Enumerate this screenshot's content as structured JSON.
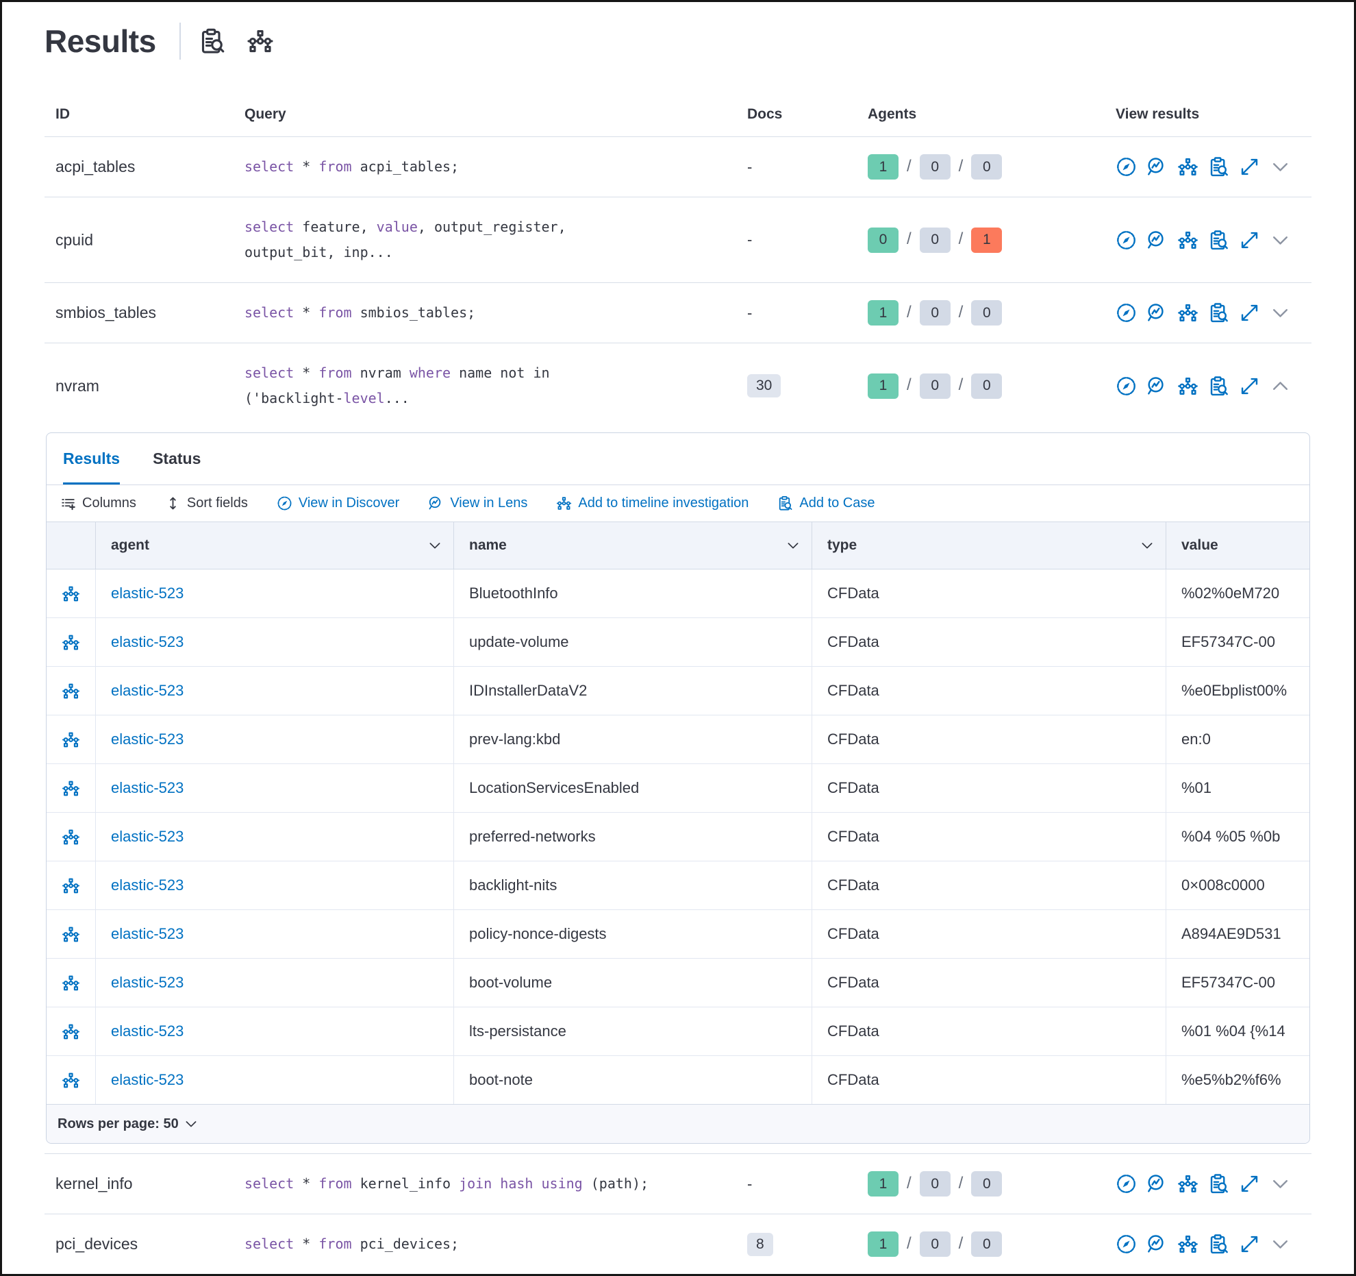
{
  "colors": {
    "primary": "#0071C2",
    "keyword": "#7A54A5",
    "success": "#6DCCB1",
    "danger": "#FC7A5C",
    "badge": "#D3DAE6",
    "docsBadge": "#E0E5EE",
    "text": "#343741",
    "border": "#D3DAE6",
    "rowBorder": "#D8DEE8",
    "gridHeaderBg": "#F1F4FA",
    "footerBg": "#F7F8FC",
    "slash": "#69707D",
    "chevron": "#8E95A3"
  },
  "header": {
    "title": "Results",
    "icons": [
      "inspect",
      "timeline"
    ]
  },
  "table": {
    "columns": [
      "ID",
      "Query",
      "Docs",
      "Agents",
      "View results"
    ],
    "view_icons": [
      "discover",
      "lens",
      "timeline",
      "inspect",
      "expand"
    ],
    "rows": [
      {
        "id": "acpi_tables",
        "query": [
          [
            "select",
            true
          ],
          [
            " * ",
            false
          ],
          [
            "from",
            true
          ],
          [
            " acpi_tables;",
            false
          ]
        ],
        "docs": {
          "text": "-",
          "badge": false
        },
        "agents": [
          {
            "n": "1",
            "c": "success"
          },
          {
            "n": "0",
            "c": "default"
          },
          {
            "n": "0",
            "c": "default"
          }
        ],
        "expanded": false
      },
      {
        "id": "cpuid",
        "query": [
          [
            "select",
            true
          ],
          [
            " feature, ",
            false
          ],
          [
            "value",
            true
          ],
          [
            ", output_register,\noutput_bit, inp...",
            false
          ]
        ],
        "docs": {
          "text": "-",
          "badge": false
        },
        "agents": [
          {
            "n": "0",
            "c": "success"
          },
          {
            "n": "0",
            "c": "default"
          },
          {
            "n": "1",
            "c": "danger"
          }
        ],
        "expanded": false
      },
      {
        "id": "smbios_tables",
        "query": [
          [
            "select",
            true
          ],
          [
            " * ",
            false
          ],
          [
            "from",
            true
          ],
          [
            " smbios_tables;",
            false
          ]
        ],
        "docs": {
          "text": "-",
          "badge": false
        },
        "agents": [
          {
            "n": "1",
            "c": "success"
          },
          {
            "n": "0",
            "c": "default"
          },
          {
            "n": "0",
            "c": "default"
          }
        ],
        "expanded": false
      },
      {
        "id": "nvram",
        "query": [
          [
            "select",
            true
          ],
          [
            " * ",
            false
          ],
          [
            "from",
            true
          ],
          [
            " nvram ",
            false
          ],
          [
            "where",
            true
          ],
          [
            " name not in\n('backlight-",
            false
          ],
          [
            "level",
            true
          ],
          [
            "...",
            false
          ]
        ],
        "docs": {
          "text": "30",
          "badge": true
        },
        "agents": [
          {
            "n": "1",
            "c": "success"
          },
          {
            "n": "0",
            "c": "default"
          },
          {
            "n": "0",
            "c": "default"
          }
        ],
        "expanded": true
      },
      {
        "id": "kernel_info",
        "query": [
          [
            "select",
            true
          ],
          [
            " * ",
            false
          ],
          [
            "from",
            true
          ],
          [
            " kernel_info ",
            false
          ],
          [
            "join hash using",
            true
          ],
          [
            " (path);",
            false
          ]
        ],
        "docs": {
          "text": "-",
          "badge": false
        },
        "agents": [
          {
            "n": "1",
            "c": "success"
          },
          {
            "n": "0",
            "c": "default"
          },
          {
            "n": "0",
            "c": "default"
          }
        ],
        "expanded": false
      },
      {
        "id": "pci_devices",
        "query": [
          [
            "select",
            true
          ],
          [
            " * ",
            false
          ],
          [
            "from",
            true
          ],
          [
            " pci_devices;",
            false
          ]
        ],
        "docs": {
          "text": "8",
          "badge": true
        },
        "agents": [
          {
            "n": "1",
            "c": "success"
          },
          {
            "n": "0",
            "c": "default"
          },
          {
            "n": "0",
            "c": "default"
          }
        ],
        "expanded": false
      }
    ]
  },
  "panel": {
    "tabs": [
      {
        "label": "Results",
        "active": true
      },
      {
        "label": "Status",
        "active": false
      }
    ],
    "toolbar": [
      {
        "label": "Columns",
        "icon": "columns",
        "primary": false
      },
      {
        "label": "Sort fields",
        "icon": "sort",
        "primary": false
      },
      {
        "label": "View in Discover",
        "icon": "discover",
        "primary": true
      },
      {
        "label": "View in Lens",
        "icon": "lens",
        "primary": true
      },
      {
        "label": "Add to timeline investigation",
        "icon": "timeline",
        "primary": true
      },
      {
        "label": "Add to Case",
        "icon": "inspect",
        "primary": true
      }
    ],
    "grid": {
      "row_icon": "timeline",
      "columns": [
        {
          "label": "agent",
          "sortable": true
        },
        {
          "label": "name",
          "sortable": true
        },
        {
          "label": "type",
          "sortable": true
        },
        {
          "label": "value",
          "sortable": false
        }
      ],
      "rows": [
        {
          "agent": "elastic-523",
          "name": "BluetoothInfo",
          "type": "CFData",
          "value": "%02%0eM720"
        },
        {
          "agent": "elastic-523",
          "name": "update-volume",
          "type": "CFData",
          "value": "EF57347C-00"
        },
        {
          "agent": "elastic-523",
          "name": "IDInstallerDataV2",
          "type": "CFData",
          "value": "%e0Ebplist00%"
        },
        {
          "agent": "elastic-523",
          "name": "prev-lang:kbd",
          "type": "CFData",
          "value": "en:0"
        },
        {
          "agent": "elastic-523",
          "name": "LocationServicesEnabled",
          "type": "CFData",
          "value": "%01"
        },
        {
          "agent": "elastic-523",
          "name": "preferred-networks",
          "type": "CFData",
          "value": "%04 %05 %0b"
        },
        {
          "agent": "elastic-523",
          "name": "backlight-nits",
          "type": "CFData",
          "value": "0×008c0000"
        },
        {
          "agent": "elastic-523",
          "name": "policy-nonce-digests",
          "type": "CFData",
          "value": "A894AE9D531"
        },
        {
          "agent": "elastic-523",
          "name": "boot-volume",
          "type": "CFData",
          "value": "EF57347C-00"
        },
        {
          "agent": "elastic-523",
          "name": "lts-persistance",
          "type": "CFData",
          "value": "%01 %04 {%14"
        },
        {
          "agent": "elastic-523",
          "name": "boot-note",
          "type": "CFData",
          "value": "%e5%b2%f6%"
        }
      ]
    },
    "footer": {
      "rows_per_page": "Rows per page: 50"
    }
  }
}
